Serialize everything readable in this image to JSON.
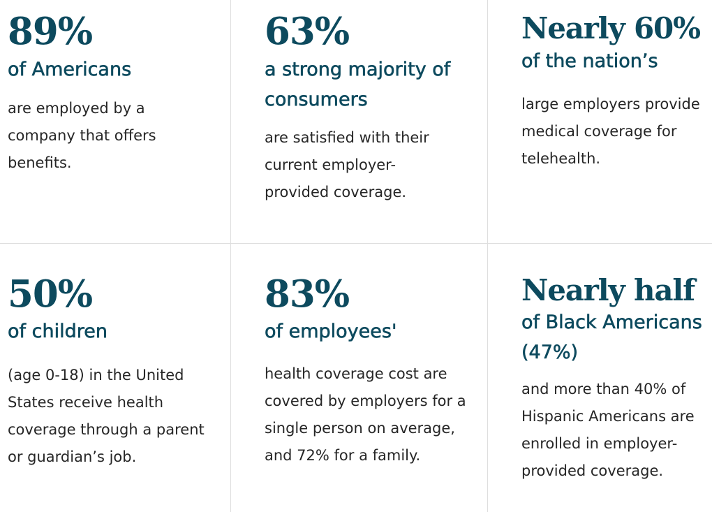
{
  "stats": [
    {
      "headline": "89%",
      "subhead": "of Americans",
      "body": "are employed by a company that offers benefits."
    },
    {
      "headline": "63%",
      "subhead": "a strong majority of consumers",
      "body": "are satisfied with their current employer-provided coverage."
    },
    {
      "headline": "Nearly 60%",
      "subhead": "of the nation’s",
      "body": "large employers provide medical coverage for telehealth."
    },
    {
      "headline": "50%",
      "subhead": "of children",
      "body": "(age 0-18) in the United States receive health coverage through a parent or guardian’s job."
    },
    {
      "headline": "83%",
      "subhead": "of employees'",
      "body": "health coverage cost are covered by employers for a single person on average, and 72% for a family."
    },
    {
      "headline": "Nearly half",
      "subhead": "of Black Americans (47%)",
      "body": "and more than 40% of Hispanic Americans are enrolled in employer-provided coverage."
    }
  ]
}
